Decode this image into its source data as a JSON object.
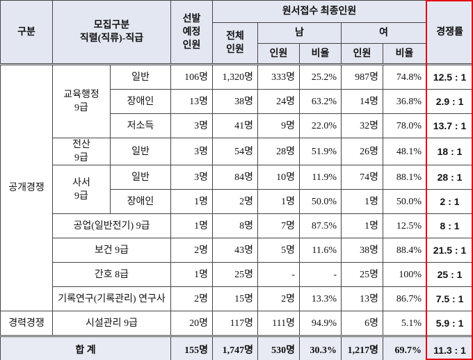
{
  "header": {
    "category": "구분",
    "recruit": [
      "모집구분",
      "직렬(직류)-직급"
    ],
    "planned": [
      "선발",
      "예정",
      "인원"
    ],
    "applicants": "원서접수 최종인원",
    "total": [
      "전체",
      "인원"
    ],
    "male": "남",
    "female": "여",
    "count": "인원",
    "ratio": "비율",
    "competition": "경쟁률"
  },
  "rows": [
    {
      "group": "공개경쟁",
      "series": [
        "교육행정",
        "9급"
      ],
      "type": "일반",
      "planned": "106명",
      "total": "1,320명",
      "male": "333명",
      "male_ratio": "25.2%",
      "female": "987명",
      "female_ratio": "74.8%",
      "rate": "12.5 : 1"
    },
    {
      "type": "장애인",
      "planned": "13명",
      "total": "38명",
      "male": "24명",
      "male_ratio": "63.2%",
      "female": "14명",
      "female_ratio": "36.8%",
      "rate": "2.9 : 1"
    },
    {
      "type": "저소득",
      "planned": "3명",
      "total": "41명",
      "male": "9명",
      "male_ratio": "22.0%",
      "female": "32명",
      "female_ratio": "78.0%",
      "rate": "13.7 : 1"
    },
    {
      "series": [
        "전산",
        "9급"
      ],
      "type": "일반",
      "planned": "3명",
      "total": "54명",
      "male": "28명",
      "male_ratio": "51.9%",
      "female": "26명",
      "female_ratio": "48.1%",
      "rate": "18 : 1"
    },
    {
      "series": [
        "사서",
        "9급"
      ],
      "type": "일반",
      "planned": "3명",
      "total": "84명",
      "male": "10명",
      "male_ratio": "11.9%",
      "female": "74명",
      "female_ratio": "88.1%",
      "rate": "28 : 1"
    },
    {
      "type": "장애인",
      "planned": "1명",
      "total": "2명",
      "male": "1명",
      "male_ratio": "50.0%",
      "female": "1명",
      "female_ratio": "50.0%",
      "rate": "2 : 1"
    },
    {
      "series": [
        "공업(일반전기) 9급"
      ],
      "planned": "1명",
      "total": "8명",
      "male": "7명",
      "male_ratio": "87.5%",
      "female": "1명",
      "female_ratio": "12.5%",
      "rate": "8 : 1"
    },
    {
      "series": [
        "보건 9급"
      ],
      "planned": "2명",
      "total": "43명",
      "male": "5명",
      "male_ratio": "11.6%",
      "female": "38명",
      "female_ratio": "88.4%",
      "rate": "21.5 : 1"
    },
    {
      "series": [
        "간호 8급"
      ],
      "planned": "1명",
      "total": "25명",
      "male": "-",
      "male_ratio": "-",
      "female": "25명",
      "female_ratio": "100%",
      "rate": "25 : 1"
    },
    {
      "series": [
        "기록연구(기록관리) 연구사"
      ],
      "planned": "2명",
      "total": "15명",
      "male": "2명",
      "male_ratio": "13.3%",
      "female": "13명",
      "female_ratio": "86.7%",
      "rate": "7.5 : 1"
    },
    {
      "group": "경력경쟁",
      "series": [
        "시설관리 9급"
      ],
      "planned": "20명",
      "total": "117명",
      "male": "111명",
      "male_ratio": "94.9%",
      "female": "6명",
      "female_ratio": "5.1%",
      "rate": "5.9 : 1"
    }
  ],
  "sum": {
    "label": "합 계",
    "planned": "155명",
    "total": "1,747명",
    "male": "530명",
    "male_ratio": "30.3%",
    "female": "1,217명",
    "female_ratio": "69.7%",
    "rate": "11.3 : 1"
  }
}
